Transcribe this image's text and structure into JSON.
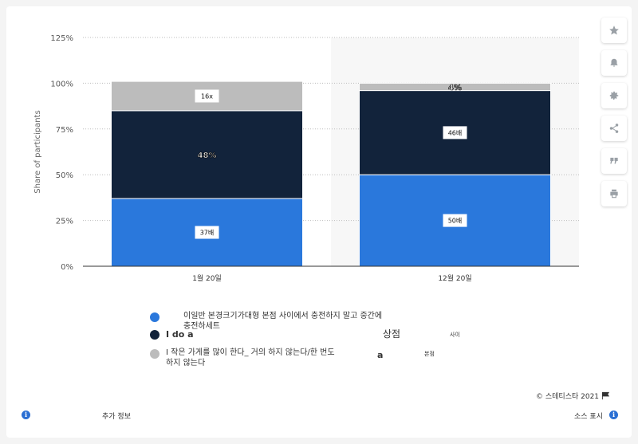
{
  "chart_data": {
    "type": "bar",
    "stacked": true,
    "categories": [
      "1월 20일",
      "12월 20일"
    ],
    "ylabel": "Share of participants",
    "ylim": [
      0,
      125
    ],
    "yticks": [
      "0%",
      "25%",
      "50%",
      "75%",
      "100%",
      "125%"
    ],
    "grid": true,
    "series": [
      {
        "name": "이일반 본경크기가대형 본점 사이에서 충전하지 말고 중간에 충전하세트",
        "color": "#2a78dc",
        "values": [
          37,
          50
        ],
        "labels": [
          "37배",
          "50배"
        ]
      },
      {
        "name": "I do a",
        "color": "#12233b",
        "values": [
          48,
          46
        ],
        "labels": [
          "48%",
          "46배"
        ]
      },
      {
        "name": "작은 가게를 많이 한다_ 거의 하지 않는다/한 번도 하지 않는다",
        "color": "#bcbcbc",
        "values": [
          16,
          4
        ],
        "labels": [
          "16x",
          "4%"
        ]
      }
    ]
  },
  "legend": {
    "item1": "이일반 본경크기가대형 본점 사이에서 충전하지 말고 중간에\n충전하세트",
    "item2": "I do a",
    "item3": "I 작은 가게를 많이 한다_ 거의 하지 않는다/한 번도\n하지 않는다",
    "stray_a1": "a",
    "stray_store": "상점",
    "stray_between": "사이",
    "stray_branch": "본점"
  },
  "footer": {
    "copyright": "©  스테티스타 2021",
    "more_info": "추가 정보",
    "source": "소스 표시"
  },
  "sidebar": {
    "icons": [
      "star-icon",
      "bell-icon",
      "gear-icon",
      "share-icon",
      "quote-icon",
      "print-icon"
    ]
  }
}
